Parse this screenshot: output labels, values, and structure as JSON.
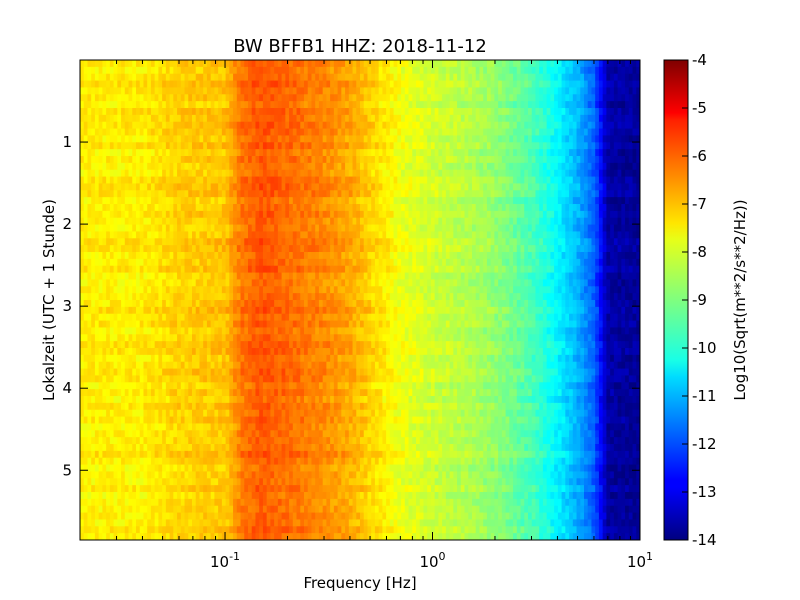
{
  "chart_data": {
    "type": "heatmap",
    "title": "BW BFFB1 HHZ: 2018-11-12",
    "xlabel": "Frequency [Hz]",
    "ylabel": "Lokalzeit (UTC + 1 Stunde)",
    "colorbar_label": "Log10(Sqrt(m**2/s**2/Hz))",
    "x_scale": "log",
    "xlim": [
      0.02,
      10
    ],
    "ylim": [
      5.85,
      0
    ],
    "x_ticks": [
      {
        "value": 0.1,
        "base": "10",
        "exp": "-1"
      },
      {
        "value": 1,
        "base": "10",
        "exp": "0"
      },
      {
        "value": 10,
        "base": "10",
        "exp": "1"
      }
    ],
    "y_ticks": [
      "1",
      "2",
      "3",
      "4",
      "5"
    ],
    "colorbar_range": [
      -14,
      -4
    ],
    "colorbar_ticks": [
      "-4",
      "-5",
      "-6",
      "-7",
      "-8",
      "-9",
      "-10",
      "-11",
      "-12",
      "-13",
      "-14"
    ],
    "colormap": "jet",
    "spectrum_profile": {
      "frequency_hz": [
        0.02,
        0.04,
        0.06,
        0.1,
        0.12,
        0.15,
        0.2,
        0.3,
        0.4,
        0.5,
        0.7,
        1.0,
        1.5,
        2.0,
        3.0,
        4.0,
        5.0,
        6.0,
        7.0,
        10.0
      ],
      "level": [
        -7.6,
        -7.6,
        -7.3,
        -7.2,
        -6.4,
        -6.1,
        -6.3,
        -6.6,
        -6.9,
        -7.3,
        -7.9,
        -8.2,
        -8.5,
        -8.8,
        -9.5,
        -10.3,
        -11.0,
        -11.8,
        -13.6,
        -13.8
      ]
    }
  }
}
